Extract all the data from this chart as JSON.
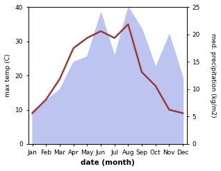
{
  "months": [
    "Jan",
    "Feb",
    "Mar",
    "Apr",
    "May",
    "Jun",
    "Jul",
    "Aug",
    "Sep",
    "Oct",
    "Nov",
    "Dec"
  ],
  "month_x": [
    0,
    1,
    2,
    3,
    4,
    5,
    6,
    7,
    8,
    9,
    10,
    11
  ],
  "temperature": [
    9,
    13,
    19,
    28,
    31,
    33,
    31,
    35,
    21,
    17,
    10,
    9
  ],
  "precipitation": [
    6,
    8,
    10,
    15,
    16,
    24,
    16,
    25,
    21,
    14,
    20,
    12
  ],
  "temp_color": "#9b3a3a",
  "precip_fill_color": "#bcc4ef",
  "temp_ylim": [
    0,
    40
  ],
  "precip_ylim": [
    0,
    25
  ],
  "xlabel": "date (month)",
  "ylabel_left": "max temp (C)",
  "ylabel_right": "med. precipitation (kg/m2)",
  "temp_linewidth": 1.8,
  "fig_bgcolor": "#ffffff"
}
